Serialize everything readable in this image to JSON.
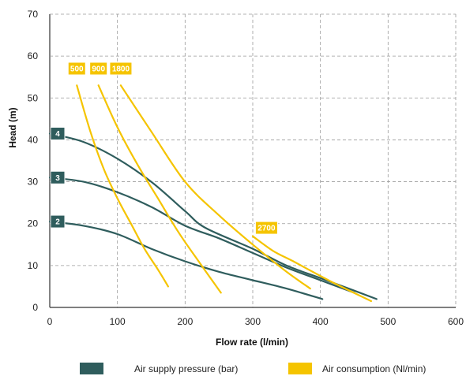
{
  "chart_data": {
    "type": "line",
    "xlabel": "Flow rate (l/min)",
    "ylabel": "Head (m)",
    "xlim": [
      0,
      600
    ],
    "ylim": [
      0,
      70
    ],
    "x_ticks": [
      "0",
      "100",
      "200",
      "300",
      "400",
      "500",
      "600"
    ],
    "y_ticks": [
      "0",
      "10",
      "20",
      "30",
      "40",
      "50",
      "60",
      "70"
    ],
    "grid": true,
    "legend_position": "bottom",
    "legend": [
      {
        "label": "Air supply pressure (bar)",
        "color": "#2f5d5d"
      },
      {
        "label": "Air consumption (Nl/min)",
        "color": "#f5c400"
      }
    ],
    "series": [
      {
        "name": "4",
        "group": "Air supply pressure (bar)",
        "color": "#2f5d5d",
        "x": [
          0,
          50,
          100,
          150,
          200,
          230,
          300,
          350,
          400,
          450,
          483
        ],
        "y": [
          41.5,
          39.5,
          35.5,
          30,
          23,
          19,
          14,
          10,
          7,
          4,
          2
        ]
      },
      {
        "name": "3",
        "group": "Air supply pressure (bar)",
        "color": "#2f5d5d",
        "x": [
          0,
          50,
          100,
          150,
          200,
          250,
          300,
          350,
          400,
          450
        ],
        "y": [
          31,
          30,
          27.5,
          24,
          19.5,
          16.5,
          13,
          9.5,
          6.5,
          3.5
        ]
      },
      {
        "name": "2",
        "group": "Air supply pressure (bar)",
        "color": "#2f5d5d",
        "x": [
          0,
          50,
          100,
          150,
          200,
          250,
          300,
          350,
          403
        ],
        "y": [
          20.5,
          19.5,
          17.5,
          14,
          11,
          8.5,
          6.5,
          4.5,
          2
        ]
      },
      {
        "name": "500",
        "group": "Air consumption (Nl/min)",
        "color": "#f5c400",
        "x": [
          40,
          60,
          80,
          100,
          120,
          140,
          160,
          175
        ],
        "y": [
          53,
          42,
          33,
          26,
          20,
          14,
          9,
          5
        ]
      },
      {
        "name": "900",
        "group": "Air consumption (Nl/min)",
        "color": "#f5c400",
        "x": [
          72,
          100,
          130,
          160,
          190,
          220,
          253
        ],
        "y": [
          53,
          43,
          34,
          26,
          18,
          11,
          3.5
        ]
      },
      {
        "name": "1800",
        "group": "Air consumption (Nl/min)",
        "color": "#f5c400",
        "x": [
          105,
          150,
          200,
          250,
          300,
          350,
          385
        ],
        "y": [
          53,
          42,
          30,
          22,
          15,
          8.5,
          4.5
        ]
      },
      {
        "name": "2700",
        "group": "Air consumption (Nl/min)",
        "color": "#f5c400",
        "x": [
          300,
          330,
          360,
          400,
          430,
          475
        ],
        "y": [
          17,
          13.5,
          11,
          7.5,
          5,
          1.5
        ]
      }
    ]
  }
}
